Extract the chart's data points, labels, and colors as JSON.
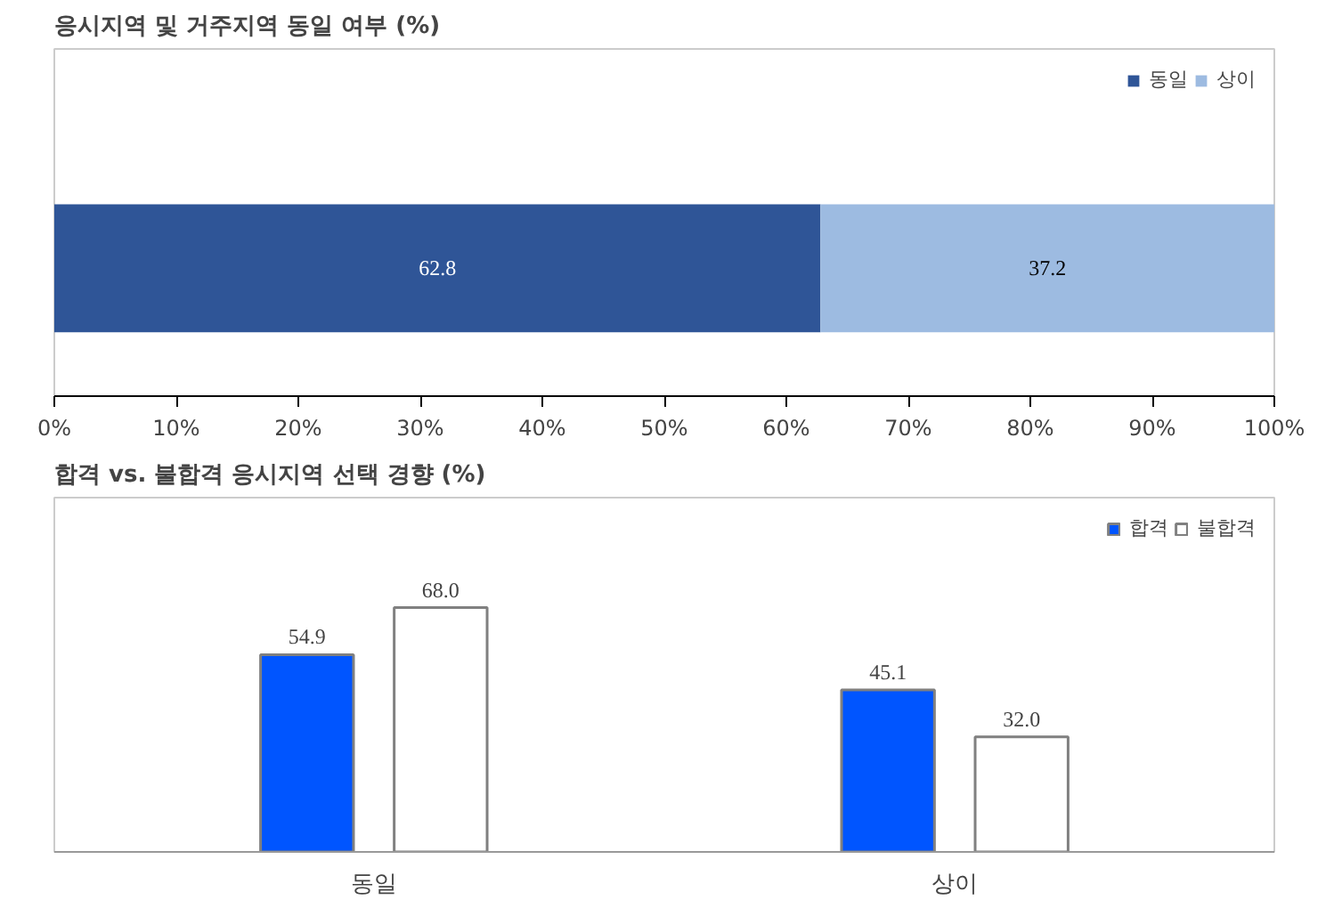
{
  "chart_data": [
    {
      "type": "bar",
      "title": "응시지역 및 거주지역 동일 여부 (%)",
      "orientation": "horizontal",
      "stacked": true,
      "categories": [
        null
      ],
      "series": [
        {
          "name": "동일",
          "color": "#2f5597",
          "values": [
            62.8
          ]
        },
        {
          "name": "상이",
          "color": "#9dbbe1",
          "values": [
            37.2
          ]
        }
      ],
      "xlim": [
        0,
        100
      ],
      "xticks": [
        {
          "value": 0,
          "label": "0%"
        },
        {
          "value": 10,
          "label": "10%"
        },
        {
          "value": 20,
          "label": "20%"
        },
        {
          "value": 30,
          "label": "30%"
        },
        {
          "value": 40,
          "label": "40%"
        },
        {
          "value": 50,
          "label": "50%"
        },
        {
          "value": 60,
          "label": "60%"
        },
        {
          "value": 70,
          "label": "70%"
        },
        {
          "value": 80,
          "label": "80%"
        },
        {
          "value": 90,
          "label": "90%"
        },
        {
          "value": 100,
          "label": "100%"
        }
      ],
      "data_labels": true,
      "legend": "top right",
      "grid": false
    },
    {
      "type": "bar",
      "title": "합격 vs. 불합격 응시지역 선택 경향 (%)",
      "categories": [
        "동일",
        "상이"
      ],
      "series": [
        {
          "name": "합격",
          "color": "#0055ff",
          "values": [
            54.9,
            45.1
          ],
          "value_labels": [
            "54.9",
            "45.1"
          ]
        },
        {
          "name": "불합격",
          "color": "#ffffff",
          "values": [
            68.0,
            32.0
          ],
          "value_labels": [
            "68.0",
            "32.0"
          ]
        }
      ],
      "tick_labels": "x",
      "legend": "top right",
      "grid": false
    }
  ]
}
